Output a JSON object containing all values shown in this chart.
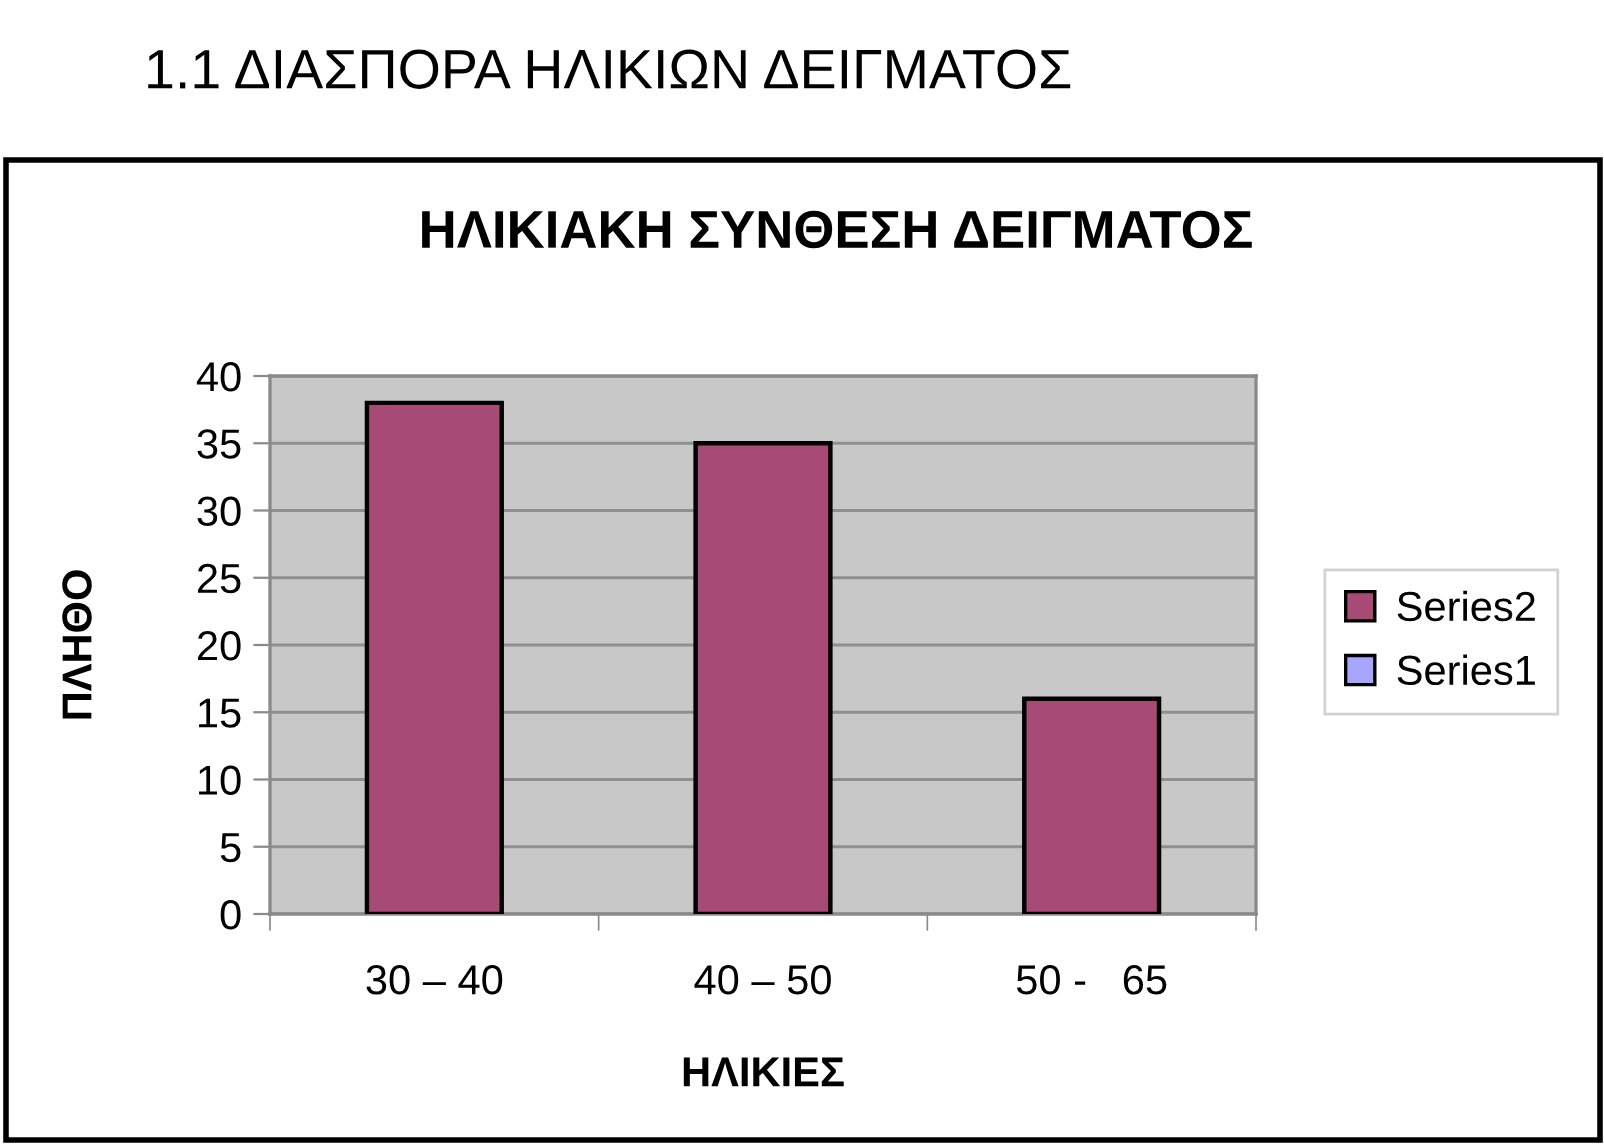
{
  "chart_data": {
    "type": "bar",
    "title": "ΗΛΙΚΙΑΚΗ ΣΥΝΘΕΣΗ ΔΕΙΓΜΑΤΟΣ",
    "annotations": [
      "1.1 ΔΙΑΣΠΟΡΑ ΗΛΙΚΙΩΝ ΔΕΙΓΜΑΤΟΣ"
    ],
    "xlabel": "ΗΛΙΚΙΕΣ",
    "ylabel": "ΠΛΗΘΟ",
    "categories": [
      "30 – 40",
      "40 – 50",
      "50 -   65"
    ],
    "series": [
      {
        "name": "Series2",
        "color": "#a84a76",
        "values": [
          38,
          35,
          16
        ]
      },
      {
        "name": "Series1",
        "color": "#a6a6ff",
        "values": [
          null,
          null,
          null
        ]
      }
    ],
    "ylim": [
      0,
      40
    ],
    "yticks": [
      0,
      5,
      10,
      15,
      20,
      25,
      30,
      35,
      40
    ],
    "grid": "y",
    "legend": "right"
  }
}
